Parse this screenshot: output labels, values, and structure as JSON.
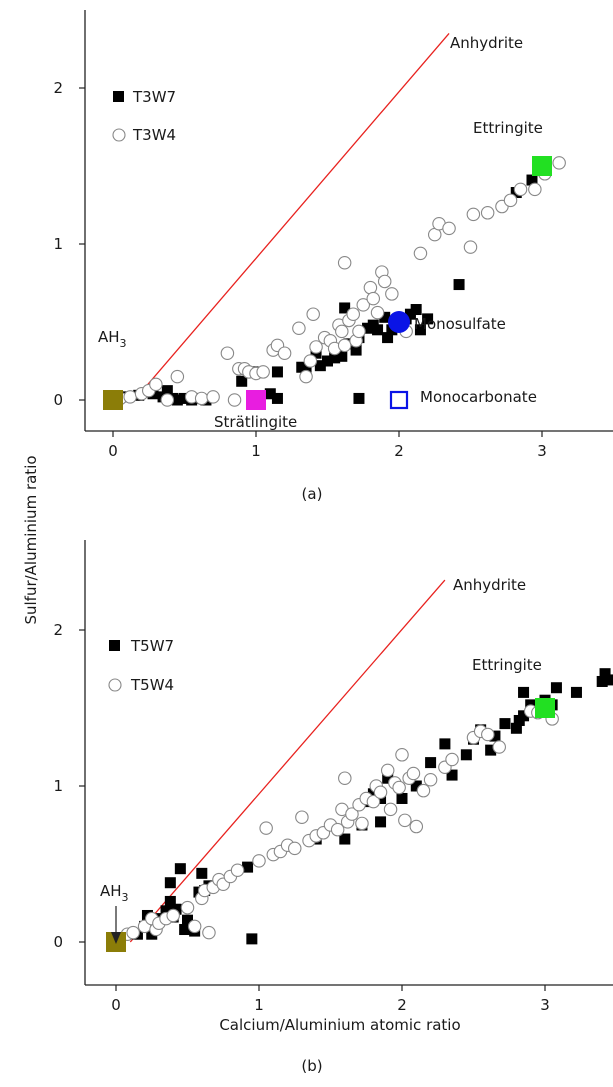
{
  "figure": {
    "shared_ylabel": "Sulfur/Aluminium ratio"
  },
  "chart_data": [
    {
      "type": "scatter",
      "panel_label": "(a)",
      "xlabel": "",
      "ylabel": "Sulfur/Aluminium ratio",
      "xlim": [
        -0.2,
        3.5
      ],
      "ylim": [
        -0.2,
        2.5
      ],
      "xticks": [
        "0",
        "1",
        "2",
        "3"
      ],
      "yticks": [
        "0",
        "1",
        "2"
      ],
      "legend_position": "top-left",
      "reference_line": {
        "label": "Anhydrite",
        "color": "#e8221f",
        "x": [
          0.15,
          2.35
        ],
        "y": [
          0.0,
          2.35
        ]
      },
      "series": [
        {
          "name": "T3W7",
          "marker": "filled-square",
          "color": "#000000",
          "points": [
            [
              0.1,
              0.02
            ],
            [
              0.18,
              0.03
            ],
            [
              0.28,
              0.04
            ],
            [
              0.35,
              0.02
            ],
            [
              0.38,
              0.06
            ],
            [
              0.42,
              0.01
            ],
            [
              0.45,
              0.0
            ],
            [
              0.5,
              0.01
            ],
            [
              0.55,
              0.0
            ],
            [
              0.6,
              0.01
            ],
            [
              0.65,
              0.0
            ],
            [
              0.9,
              0.12
            ],
            [
              0.98,
              0.18
            ],
            [
              1.1,
              0.04
            ],
            [
              1.15,
              0.18
            ],
            [
              1.15,
              0.01
            ],
            [
              1.32,
              0.21
            ],
            [
              1.35,
              0.18
            ],
            [
              1.42,
              0.3
            ],
            [
              1.45,
              0.22
            ],
            [
              1.5,
              0.25
            ],
            [
              1.55,
              0.27
            ],
            [
              1.6,
              0.28
            ],
            [
              1.62,
              0.59
            ],
            [
              1.65,
              0.36
            ],
            [
              1.7,
              0.32
            ],
            [
              1.72,
              0.4
            ],
            [
              1.78,
              0.46
            ],
            [
              1.82,
              0.48
            ],
            [
              1.85,
              0.45
            ],
            [
              1.9,
              0.53
            ],
            [
              1.92,
              0.4
            ],
            [
              1.95,
              0.45
            ],
            [
              1.98,
              0.5
            ],
            [
              2.05,
              0.52
            ],
            [
              2.08,
              0.55
            ],
            [
              2.12,
              0.58
            ],
            [
              2.15,
              0.45
            ],
            [
              2.2,
              0.52
            ],
            [
              1.72,
              0.01
            ],
            [
              2.42,
              0.74
            ],
            [
              2.82,
              1.33
            ],
            [
              2.93,
              1.41
            ]
          ]
        },
        {
          "name": "T3W4",
          "marker": "open-circle",
          "color": "#888888",
          "points": [
            [
              0.05,
              0.01
            ],
            [
              0.12,
              0.02
            ],
            [
              0.2,
              0.04
            ],
            [
              0.25,
              0.06
            ],
            [
              0.3,
              0.1
            ],
            [
              0.38,
              0.0
            ],
            [
              0.45,
              0.15
            ],
            [
              0.55,
              0.02
            ],
            [
              0.62,
              0.01
            ],
            [
              0.7,
              0.02
            ],
            [
              0.8,
              0.3
            ],
            [
              0.85,
              0.0
            ],
            [
              0.88,
              0.2
            ],
            [
              0.92,
              0.2
            ],
            [
              0.95,
              0.18
            ],
            [
              1.0,
              0.17
            ],
            [
              1.05,
              0.18
            ],
            [
              1.12,
              0.32
            ],
            [
              1.15,
              0.35
            ],
            [
              1.2,
              0.3
            ],
            [
              1.3,
              0.46
            ],
            [
              1.35,
              0.15
            ],
            [
              1.38,
              0.25
            ],
            [
              1.4,
              0.55
            ],
            [
              1.42,
              0.34
            ],
            [
              1.48,
              0.4
            ],
            [
              1.52,
              0.38
            ],
            [
              1.55,
              0.33
            ],
            [
              1.58,
              0.48
            ],
            [
              1.6,
              0.44
            ],
            [
              1.62,
              0.35
            ],
            [
              1.65,
              0.51
            ],
            [
              1.68,
              0.55
            ],
            [
              1.7,
              0.38
            ],
            [
              1.72,
              0.44
            ],
            [
              1.75,
              0.61
            ],
            [
              1.8,
              0.72
            ],
            [
              1.82,
              0.65
            ],
            [
              1.85,
              0.56
            ],
            [
              1.88,
              0.82
            ],
            [
              1.9,
              0.76
            ],
            [
              1.95,
              0.68
            ],
            [
              1.62,
              0.88
            ],
            [
              2.05,
              0.44
            ],
            [
              2.15,
              0.94
            ],
            [
              2.25,
              1.06
            ],
            [
              2.28,
              1.13
            ],
            [
              2.35,
              1.1
            ],
            [
              2.5,
              0.98
            ],
            [
              2.52,
              1.19
            ],
            [
              2.62,
              1.2
            ],
            [
              2.72,
              1.24
            ],
            [
              2.78,
              1.28
            ],
            [
              2.85,
              1.35
            ],
            [
              2.95,
              1.35
            ],
            [
              3.02,
              1.45
            ],
            [
              3.12,
              1.52
            ]
          ]
        }
      ],
      "annotations": [
        {
          "label": "Ettringite",
          "x": 3.0,
          "y": 1.5,
          "marker": "filled-square",
          "color": "#22e022"
        },
        {
          "label": "Monosulfate",
          "x": 2.0,
          "y": 0.5,
          "marker": "filled-circle",
          "color": "#0a14e6"
        },
        {
          "label": "Monocarbonate",
          "x": 2.0,
          "y": 0.0,
          "marker": "open-square",
          "color": "#0a14e6"
        },
        {
          "label": "Strätlingite",
          "x": 1.0,
          "y": 0.0,
          "marker": "filled-square",
          "color": "#e81de0"
        },
        {
          "label": "AH",
          "label_sub": "3",
          "x": 0.0,
          "y": 0.0,
          "marker": "filled-square",
          "color": "#8b7d08"
        }
      ]
    },
    {
      "type": "scatter",
      "panel_label": "(b)",
      "xlabel": "Calcium/Aluminium atomic ratio",
      "ylabel": "Sulfur/Aluminium ratio",
      "xlim": [
        -0.2,
        3.5
      ],
      "ylim": [
        -0.2,
        2.5
      ],
      "xticks": [
        "0",
        "1",
        "2",
        "3"
      ],
      "yticks": [
        "0",
        "1",
        "2"
      ],
      "legend_position": "top-left",
      "reference_line": {
        "label": "Anhydrite",
        "color": "#e8221f",
        "x": [
          0.1,
          2.3
        ],
        "y": [
          0.0,
          2.32
        ]
      },
      "series": [
        {
          "name": "T5W7",
          "marker": "filled-square",
          "color": "#000000",
          "points": [
            [
              0.15,
              0.05
            ],
            [
              0.2,
              0.1
            ],
            [
              0.22,
              0.17
            ],
            [
              0.25,
              0.05
            ],
            [
              0.3,
              0.15
            ],
            [
              0.35,
              0.2
            ],
            [
              0.38,
              0.26
            ],
            [
              0.4,
              0.16
            ],
            [
              0.42,
              0.21
            ],
            [
              0.45,
              0.47
            ],
            [
              0.48,
              0.08
            ],
            [
              0.5,
              0.14
            ],
            [
              0.38,
              0.38
            ],
            [
              0.55,
              0.07
            ],
            [
              0.58,
              0.32
            ],
            [
              0.6,
              0.44
            ],
            [
              0.62,
              0.33
            ],
            [
              0.65,
              0.36
            ],
            [
              0.95,
              0.02
            ],
            [
              0.92,
              0.48
            ],
            [
              1.4,
              0.66
            ],
            [
              1.6,
              0.66
            ],
            [
              1.72,
              0.75
            ],
            [
              1.85,
              0.77
            ],
            [
              1.75,
              0.9
            ],
            [
              1.8,
              0.95
            ],
            [
              1.85,
              0.92
            ],
            [
              1.9,
              1.05
            ],
            [
              2.0,
              0.92
            ],
            [
              2.1,
              1.0
            ],
            [
              2.2,
              1.15
            ],
            [
              2.3,
              1.27
            ],
            [
              2.35,
              1.07
            ],
            [
              2.45,
              1.2
            ],
            [
              2.5,
              1.3
            ],
            [
              2.55,
              1.36
            ],
            [
              2.62,
              1.23
            ],
            [
              2.65,
              1.32
            ],
            [
              2.72,
              1.4
            ],
            [
              2.8,
              1.37
            ],
            [
              2.82,
              1.42
            ],
            [
              2.85,
              1.45
            ],
            [
              2.9,
              1.52
            ],
            [
              2.95,
              1.5
            ],
            [
              3.0,
              1.55
            ],
            [
              3.05,
              1.52
            ],
            [
              3.08,
              1.63
            ],
            [
              2.85,
              1.6
            ],
            [
              3.22,
              1.6
            ],
            [
              3.4,
              1.67
            ],
            [
              3.42,
              1.72
            ],
            [
              3.46,
              1.68
            ]
          ]
        },
        {
          "name": "T5W4",
          "marker": "open-circle",
          "color": "#888888",
          "points": [
            [
              0.08,
              0.05
            ],
            [
              0.12,
              0.06
            ],
            [
              0.2,
              0.1
            ],
            [
              0.25,
              0.15
            ],
            [
              0.28,
              0.08
            ],
            [
              0.3,
              0.12
            ],
            [
              0.35,
              0.15
            ],
            [
              0.4,
              0.17
            ],
            [
              0.5,
              0.22
            ],
            [
              0.55,
              0.1
            ],
            [
              0.6,
              0.28
            ],
            [
              0.62,
              0.33
            ],
            [
              0.65,
              0.06
            ],
            [
              0.68,
              0.35
            ],
            [
              0.72,
              0.4
            ],
            [
              0.75,
              0.37
            ],
            [
              0.8,
              0.42
            ],
            [
              0.85,
              0.46
            ],
            [
              1.0,
              0.52
            ],
            [
              1.05,
              0.73
            ],
            [
              1.1,
              0.56
            ],
            [
              1.15,
              0.58
            ],
            [
              1.2,
              0.62
            ],
            [
              1.25,
              0.6
            ],
            [
              1.3,
              0.8
            ],
            [
              1.35,
              0.65
            ],
            [
              1.4,
              0.68
            ],
            [
              1.45,
              0.7
            ],
            [
              1.5,
              0.75
            ],
            [
              1.55,
              0.72
            ],
            [
              1.58,
              0.85
            ],
            [
              1.6,
              1.05
            ],
            [
              1.62,
              0.77
            ],
            [
              1.65,
              0.82
            ],
            [
              1.7,
              0.88
            ],
            [
              1.72,
              0.76
            ],
            [
              1.75,
              0.92
            ],
            [
              1.8,
              0.9
            ],
            [
              1.82,
              1.0
            ],
            [
              1.85,
              0.96
            ],
            [
              1.9,
              1.1
            ],
            [
              1.92,
              0.85
            ],
            [
              1.95,
              1.02
            ],
            [
              1.98,
              0.99
            ],
            [
              2.0,
              1.2
            ],
            [
              2.02,
              0.78
            ],
            [
              2.05,
              1.05
            ],
            [
              2.08,
              1.08
            ],
            [
              2.1,
              0.74
            ],
            [
              2.15,
              0.97
            ],
            [
              2.2,
              1.04
            ],
            [
              2.3,
              1.12
            ],
            [
              2.35,
              1.17
            ],
            [
              2.5,
              1.31
            ],
            [
              2.55,
              1.35
            ],
            [
              2.6,
              1.33
            ],
            [
              2.68,
              1.25
            ],
            [
              2.9,
              1.48
            ],
            [
              2.95,
              1.47
            ],
            [
              3.02,
              1.5
            ],
            [
              3.05,
              1.43
            ]
          ]
        }
      ],
      "annotations": [
        {
          "label": "Ettringite",
          "x": 3.0,
          "y": 1.5,
          "marker": "filled-square",
          "color": "#22e022"
        },
        {
          "label": "AH",
          "label_sub": "3",
          "x": 0.0,
          "y": 0.0,
          "marker": "filled-square",
          "color": "#8b7d08",
          "arrow": true
        }
      ]
    }
  ]
}
